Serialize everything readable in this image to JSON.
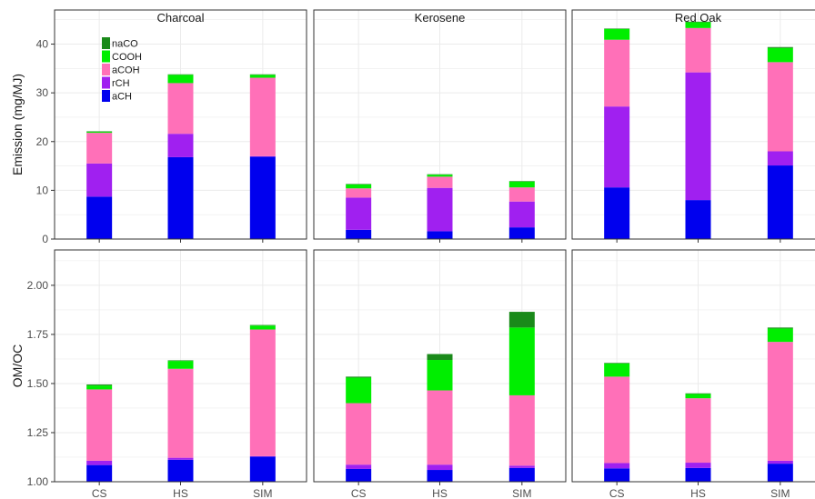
{
  "chart_data": {
    "type": "bar",
    "stacked": true,
    "facet_columns": [
      "Charcoal",
      "Kerosene",
      "Red Oak"
    ],
    "categories": [
      "CS",
      "HS",
      "SIM"
    ],
    "component_order": [
      "aCH",
      "rCH",
      "aCOH",
      "COOH",
      "naCO"
    ],
    "colors": {
      "aCH": "#0000ee",
      "rCH": "#a020f0",
      "aCOH": "#ff70b8",
      "COOH": "#00ee00",
      "naCO": "#1a8a1a"
    },
    "legend": {
      "title": "",
      "items": [
        "naCO",
        "COOH",
        "aCOH",
        "rCH",
        "aCH"
      ],
      "placement": "top-left"
    },
    "rows": [
      {
        "ylabel": "Emission (mg/MJ)",
        "ylim": [
          0,
          47
        ],
        "yticks": [
          0,
          10,
          20,
          30,
          40
        ],
        "ytick_labels": [
          "0",
          "10",
          "20",
          "30",
          "40"
        ],
        "panels": [
          {
            "facet": "Charcoal",
            "bars": [
              {
                "category": "CS",
                "aCH": 8.7,
                "rCH": 6.8,
                "aCOH": 6.3,
                "COOH": 0.2,
                "naCO": 0.1
              },
              {
                "category": "HS",
                "aCH": 16.8,
                "rCH": 4.8,
                "aCOH": 10.4,
                "COOH": 1.7,
                "naCO": 0.1
              },
              {
                "category": "SIM",
                "aCH": 16.9,
                "rCH": 0.1,
                "aCOH": 16.1,
                "COOH": 0.6,
                "naCO": 0.1
              }
            ]
          },
          {
            "facet": "Kerosene",
            "bars": [
              {
                "category": "CS",
                "aCH": 1.9,
                "rCH": 6.6,
                "aCOH": 1.9,
                "COOH": 0.8,
                "naCO": 0.1
              },
              {
                "category": "HS",
                "aCH": 1.6,
                "rCH": 8.9,
                "aCOH": 2.3,
                "COOH": 0.4,
                "naCO": 0.1
              },
              {
                "category": "SIM",
                "aCH": 2.4,
                "rCH": 5.3,
                "aCOH": 2.9,
                "COOH": 1.2,
                "naCO": 0.1
              }
            ]
          },
          {
            "facet": "Red Oak",
            "bars": [
              {
                "category": "CS",
                "aCH": 10.6,
                "rCH": 16.6,
                "aCOH": 13.7,
                "COOH": 2.2,
                "naCO": 0.1
              },
              {
                "category": "HS",
                "aCH": 8.0,
                "rCH": 26.2,
                "aCOH": 9.1,
                "COOH": 1.2,
                "naCO": 0.1
              },
              {
                "category": "SIM",
                "aCH": 15.1,
                "rCH": 2.9,
                "aCOH": 18.3,
                "COOH": 2.9,
                "naCO": 0.2
              }
            ]
          }
        ]
      },
      {
        "ylabel": "OM/OC",
        "ylim": [
          1.0,
          2.18
        ],
        "base": 1.0,
        "yticks": [
          1.0,
          1.25,
          1.5,
          1.75,
          2.0
        ],
        "ytick_labels": [
          "1.00",
          "1.25",
          "1.50",
          "1.75",
          "2.00"
        ],
        "panels": [
          {
            "facet": "Charcoal",
            "bars": [
              {
                "category": "CS",
                "aCH": 0.085,
                "rCH": 0.022,
                "aCOH": 0.363,
                "COOH": 0.02,
                "naCO": 0.005
              },
              {
                "category": "HS",
                "aCH": 0.112,
                "rCH": 0.01,
                "aCOH": 0.453,
                "COOH": 0.04,
                "naCO": 0.003
              },
              {
                "category": "SIM",
                "aCH": 0.128,
                "rCH": 0.002,
                "aCOH": 0.645,
                "COOH": 0.02,
                "naCO": 0.003
              }
            ]
          },
          {
            "facet": "Kerosene",
            "bars": [
              {
                "category": "CS",
                "aCH": 0.065,
                "rCH": 0.022,
                "aCOH": 0.313,
                "COOH": 0.13,
                "naCO": 0.005
              },
              {
                "category": "HS",
                "aCH": 0.06,
                "rCH": 0.027,
                "aCOH": 0.378,
                "COOH": 0.155,
                "naCO": 0.03
              },
              {
                "category": "SIM",
                "aCH": 0.07,
                "rCH": 0.012,
                "aCOH": 0.358,
                "COOH": 0.345,
                "naCO": 0.08
              }
            ]
          },
          {
            "facet": "Red Oak",
            "bars": [
              {
                "category": "CS",
                "aCH": 0.068,
                "rCH": 0.027,
                "aCOH": 0.44,
                "COOH": 0.067,
                "naCO": 0.003
              },
              {
                "category": "HS",
                "aCH": 0.07,
                "rCH": 0.027,
                "aCOH": 0.328,
                "COOH": 0.022,
                "naCO": 0.003
              },
              {
                "category": "SIM",
                "aCH": 0.092,
                "rCH": 0.015,
                "aCOH": 0.605,
                "COOH": 0.068,
                "naCO": 0.005
              }
            ]
          }
        ]
      }
    ],
    "grid": true
  }
}
